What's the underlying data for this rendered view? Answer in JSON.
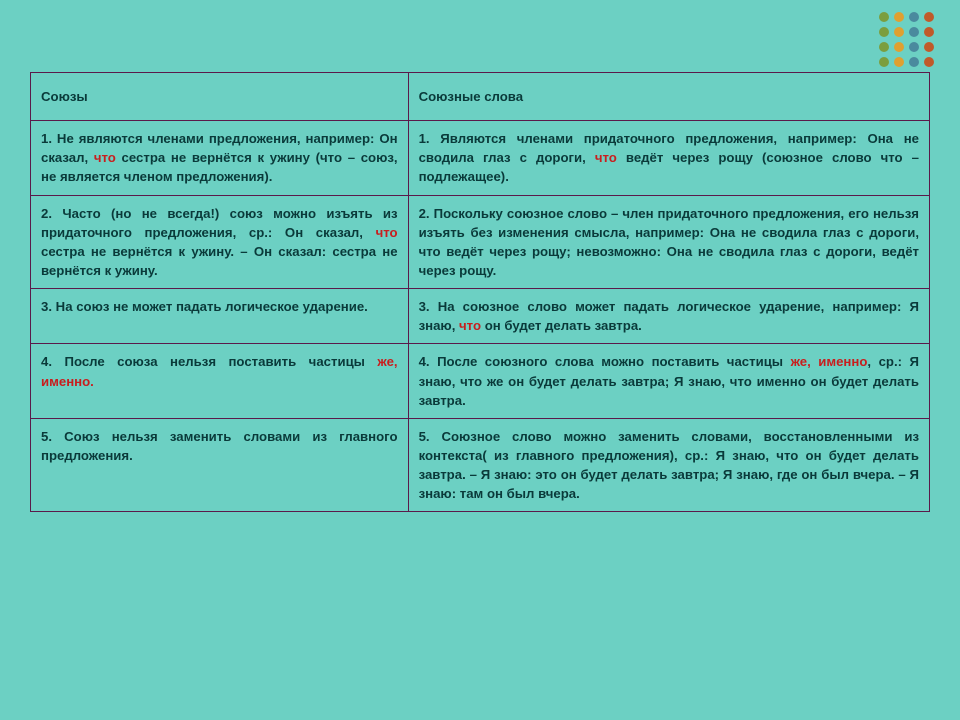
{
  "decor": {
    "dot_colors_row": [
      "#7b9e3e",
      "#e0a030",
      "#4a8a9e",
      "#c05a2a"
    ]
  },
  "table": {
    "col_widths": [
      "42%",
      "58%"
    ],
    "border_color": "#5a1a4a",
    "header": {
      "left": "Союзы",
      "right": "Союзные слова"
    },
    "rows": [
      {
        "left": {
          "num": "1.",
          "pre": "Не являются членами предложения, например: Он сказал, ",
          "hl": "что",
          "post": " сестра не вернётся к ужину (что – союз, не является членом предложения)."
        },
        "right": {
          "num": "1.",
          "pre": "Являются членами придаточного предложения, например: Она не сводила глаз с дороги, ",
          "hl": "что",
          "post": " ведёт через рощу (союзное слово что – подлежащее)."
        }
      },
      {
        "left": {
          "num": "2.",
          "pre": "Часто (но не всегда!) союз можно изъять из придаточного предложения, ср.: Он сказал, ",
          "hl": "что",
          "post": " сестра не вернётся к ужину. – Он сказал: сестра не вернётся к ужину."
        },
        "right": {
          "num": "2.",
          "plain": "Поскольку союзное слово – член придаточного предложения, его нельзя изъять без изменения смысла, например: Она не сводила глаз с дороги, что ведёт через рощу; невозможно: Она не сводила глаз с дороги, ведёт через рощу."
        }
      },
      {
        "left": {
          "num": "3.",
          "plain": "На союз не может падать логическое ударение."
        },
        "right": {
          "num": "3.",
          "pre": "На союзное слово может падать логическое ударение, например: Я знаю, ",
          "hl": "что",
          "post": " он будет делать завтра."
        }
      },
      {
        "left": {
          "num": "4.",
          "pre": "После союза нельзя поставить частицы ",
          "hl": "же, именно.",
          "post": ""
        },
        "right": {
          "num": "4.",
          "pre": "После союзного слова можно поставить частицы ",
          "hl": "же, именно",
          "post": ", ср.: Я знаю, что же он будет делать завтра; Я знаю, что именно он будет делать завтра."
        }
      },
      {
        "left": {
          "num": "5.",
          "plain": "Союз нельзя заменить словами из главного предложения."
        },
        "right": {
          "num": "5.",
          "plain": "Союзное слово можно заменить словами, восстановленными из контекста( из главного предложения), ср.: Я знаю, что он будет делать завтра. – Я знаю: это он будет делать завтра; Я знаю, где он был вчера. – Я знаю: там он был вчера."
        }
      }
    ]
  },
  "style": {
    "background_color": "#6cd0c3",
    "text_color": "#0a3a3a",
    "highlight_color": "#c81e1e",
    "font_size_pt": 10,
    "font_family": "Arial"
  }
}
